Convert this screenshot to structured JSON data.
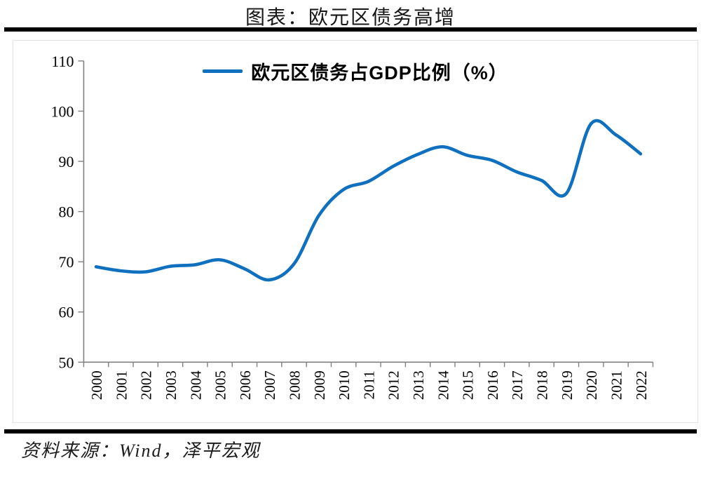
{
  "page": {
    "title": "图表：欧元区债务高增",
    "source": "资料来源：Wind，泽平宏观"
  },
  "chart_data": {
    "type": "line",
    "title": "图表：欧元区债务高增",
    "legend": "欧元区债务占GDP比例（%）",
    "legend_position": "top-center",
    "categories": [
      "2000",
      "2001",
      "2002",
      "2003",
      "2004",
      "2005",
      "2006",
      "2007",
      "2008",
      "2009",
      "2010",
      "2011",
      "2012",
      "2013",
      "2014",
      "2015",
      "2016",
      "2017",
      "2018",
      "2019",
      "2020",
      "2021",
      "2022"
    ],
    "series": [
      {
        "name": "欧元区债务占GDP比例（%）",
        "color": "#0f70c0",
        "values": [
          69.0,
          68.2,
          68.0,
          69.1,
          69.4,
          70.4,
          68.6,
          66.4,
          69.6,
          79.2,
          84.4,
          86.0,
          89.0,
          91.4,
          92.9,
          91.2,
          90.2,
          87.9,
          86.2,
          83.6,
          97.5,
          95.3,
          91.5
        ]
      }
    ],
    "xlabel": "",
    "ylabel": "",
    "ylim": [
      50,
      110
    ],
    "yticks": [
      50,
      60,
      70,
      80,
      90,
      100,
      110
    ],
    "grid": false,
    "axis_color": "#808080",
    "tick_label_color": "#000000"
  }
}
